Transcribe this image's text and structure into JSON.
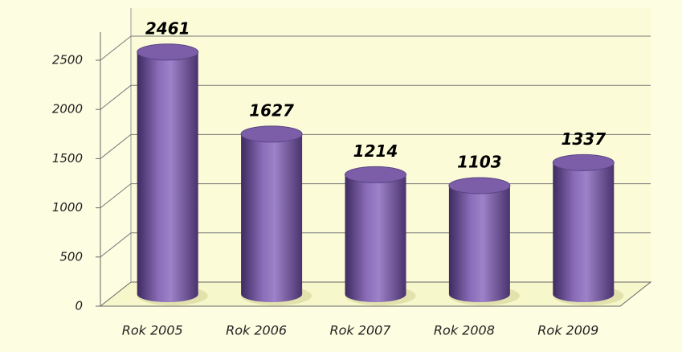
{
  "chart_data": {
    "type": "bar3d",
    "categories": [
      "Rok 2005",
      "Rok 2006",
      "Rok 2007",
      "Rok 2008",
      "Rok 2009"
    ],
    "values": [
      2461,
      1627,
      1214,
      1103,
      1337
    ],
    "color": "#7b5ea7",
    "ylim": [
      0,
      2500
    ],
    "yticks": [
      0,
      500,
      1000,
      1500,
      2000,
      2500
    ],
    "grid": true
  }
}
